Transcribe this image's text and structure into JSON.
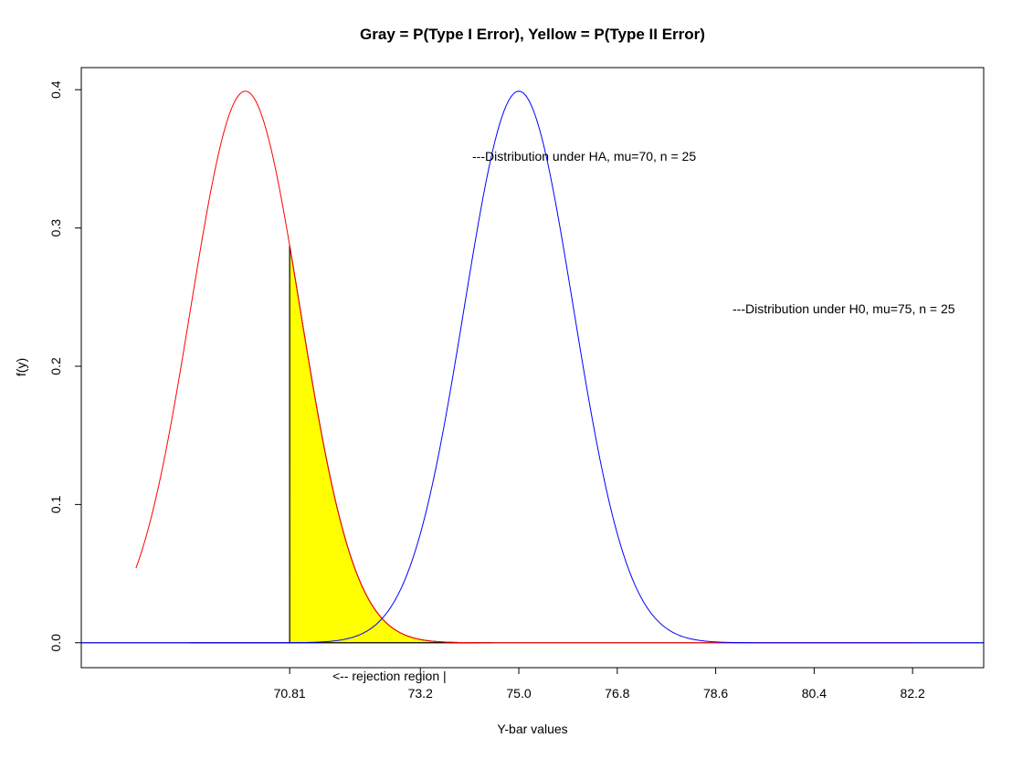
{
  "chart_data": {
    "type": "line",
    "title": "Gray = P(Type I Error), Yellow = P(Type II Error)",
    "xlabel": "Y-bar values",
    "ylabel": "f(y)",
    "xlim": [
      67.0,
      83.5
    ],
    "ylim": [
      -0.018,
      0.416
    ],
    "x_tick_labels": [
      "70.81",
      "73.2",
      "75.0",
      "76.8",
      "78.6",
      "80.4",
      "82.2"
    ],
    "x_tick_values": [
      70.81,
      73.2,
      75.0,
      76.8,
      78.6,
      80.4,
      82.2
    ],
    "y_tick_labels": [
      "0.0",
      "0.1",
      "0.2",
      "0.3",
      "0.4"
    ],
    "y_tick_values": [
      0.0,
      0.1,
      0.2,
      0.3,
      0.4
    ],
    "series": [
      {
        "name": "HA",
        "mu": 70,
        "sd": 1,
        "color": "#ff0000",
        "x_range": [
          68.0,
          82.2
        ]
      },
      {
        "name": "H0",
        "mu": 75,
        "sd": 1,
        "color": "#0000ff",
        "x_range": [
          67.0,
          83.5
        ]
      }
    ],
    "critical_value": 70.81,
    "shaded_regions": [
      {
        "label": "P(Type I Error)",
        "color": "#bebebe",
        "curve": "H0",
        "from": 69.0,
        "to": 70.81
      },
      {
        "label": "P(Type II Error)",
        "color": "#ffff00",
        "curve": "HA",
        "from": 70.81,
        "to": 74.5
      }
    ],
    "annotations": {
      "ha_label": "---Distribution under HA, mu=70, n = 25",
      "h0_label": "---Distribution under H0, mu=75, n = 25",
      "rejection_label": "<-- rejection region |"
    },
    "grid": false,
    "legend": "none"
  }
}
